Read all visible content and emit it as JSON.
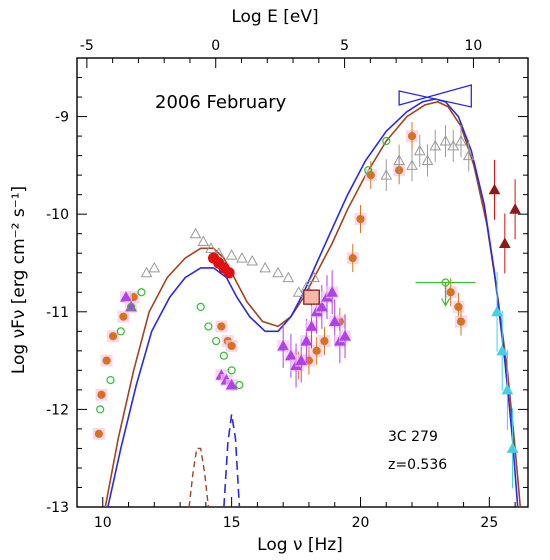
{
  "chart_data": {
    "type": "scatter",
    "period_label": "2006 February",
    "source_label": "3C 279",
    "redshift_label": "z=0.536",
    "xlabel": "Log ν [Hz]",
    "x2label": "Log E [eV]",
    "ylabel": "Log νFν [erg cm⁻² s⁻¹]",
    "xlim": [
      9,
      26.5
    ],
    "ylim": [
      -13,
      -8.4
    ],
    "x_ticks": [
      "10",
      "15",
      "20",
      "25"
    ],
    "x_tick_values": [
      10,
      15,
      20,
      25
    ],
    "y_ticks": [
      "-9",
      "-10",
      "-11",
      "-12",
      "-13"
    ],
    "y_tick_values": [
      -9,
      -10,
      -11,
      -12,
      -13
    ],
    "top_ticks": [
      "-5",
      "0",
      "5",
      "10"
    ],
    "top_tick_values": [
      -5,
      0,
      5,
      10
    ],
    "colors": {
      "brown_model": "#a0451f",
      "blue_model": "#2a2ae0",
      "orange": "#d9731a",
      "purple": "#b040e8",
      "green": "#30c030",
      "grey": "#9a9a9a",
      "red": "#e01010",
      "cyan": "#40d0e8",
      "darkred": "#8b1a1a",
      "pink_halo": "#f4c8f0"
    },
    "series": [
      {
        "name": "",
        "kind": "model-brown",
        "x": [
          10.1,
          10.6,
          11.2,
          11.8,
          12.5,
          13.2,
          13.8,
          14.3,
          14.7,
          15.1,
          15.6,
          16.2,
          16.8,
          17.3,
          17.8,
          18.3,
          18.9,
          19.5,
          20.2,
          21.0,
          21.8,
          22.5,
          23.0,
          23.4,
          23.9,
          24.4,
          24.9,
          25.3,
          25.7,
          26.0,
          26.2
        ],
        "y": [
          -13.0,
          -12.3,
          -11.6,
          -11.0,
          -10.65,
          -10.45,
          -10.35,
          -10.35,
          -10.45,
          -10.65,
          -10.9,
          -11.1,
          -11.15,
          -11.05,
          -10.85,
          -10.6,
          -10.3,
          -9.95,
          -9.6,
          -9.25,
          -9.0,
          -8.88,
          -8.85,
          -8.9,
          -9.1,
          -9.5,
          -10.1,
          -10.8,
          -11.6,
          -12.4,
          -13.0
        ]
      },
      {
        "name": "",
        "kind": "model-blue",
        "x": [
          10.2,
          10.7,
          11.3,
          11.9,
          12.6,
          13.2,
          13.8,
          14.3,
          14.8,
          15.2,
          15.7,
          16.3,
          16.8,
          17.3,
          17.8,
          18.3,
          18.9,
          19.5,
          20.2,
          21.0,
          21.8,
          22.4,
          22.9,
          23.3,
          23.8,
          24.3,
          24.8,
          25.2,
          25.6,
          25.9,
          26.1
        ],
        "y": [
          -13.0,
          -12.4,
          -11.75,
          -11.2,
          -10.85,
          -10.65,
          -10.55,
          -10.55,
          -10.65,
          -10.85,
          -11.05,
          -11.2,
          -11.2,
          -11.05,
          -10.8,
          -10.5,
          -10.15,
          -9.8,
          -9.45,
          -9.15,
          -8.95,
          -8.85,
          -8.82,
          -8.85,
          -9.0,
          -9.35,
          -9.9,
          -10.6,
          -11.5,
          -12.3,
          -13.0
        ]
      },
      {
        "name": "",
        "kind": "dashed-brown",
        "x": [
          13.35,
          13.5,
          13.65,
          13.8,
          13.95,
          14.1
        ],
        "y": [
          -13.0,
          -12.65,
          -12.4,
          -12.4,
          -12.65,
          -13.0
        ]
      },
      {
        "name": "",
        "kind": "dashed-blue",
        "x": [
          14.7,
          14.85,
          15.0,
          15.15,
          15.3
        ],
        "y": [
          -13.0,
          -12.35,
          -12.05,
          -12.3,
          -13.0
        ]
      },
      {
        "name": "",
        "kind": "orange-circles",
        "x": [
          9.85,
          9.95,
          10.15,
          10.4,
          10.8,
          11.2,
          14.6,
          14.85,
          15.0,
          17.6,
          18.0,
          18.3,
          18.6,
          19.2,
          19.7,
          20.0,
          20.4,
          21.5,
          22.0,
          23.5,
          23.8,
          23.9
        ],
        "y": [
          -12.25,
          -11.85,
          -11.5,
          -11.25,
          -11.05,
          -10.85,
          -11.15,
          -11.3,
          -11.35,
          -11.55,
          -11.5,
          -11.4,
          -11.3,
          -11.1,
          -10.45,
          -10.05,
          -9.6,
          -9.55,
          -9.2,
          -10.8,
          -10.95,
          -11.1
        ]
      },
      {
        "name": "",
        "kind": "purple-triangles",
        "x": [
          10.9,
          11.1,
          14.6,
          14.8,
          15.0,
          17.0,
          17.3,
          17.5,
          17.7,
          17.9,
          18.1,
          18.3,
          18.5,
          18.7,
          18.9,
          19.0,
          19.2,
          19.4
        ],
        "y": [
          -10.85,
          -10.95,
          -11.65,
          -11.7,
          -11.75,
          -11.35,
          -11.45,
          -11.55,
          -11.5,
          -11.3,
          -11.15,
          -11.0,
          -10.95,
          -10.85,
          -10.8,
          -11.1,
          -11.3,
          -11.25
        ]
      },
      {
        "name": "",
        "kind": "green-circles",
        "x": [
          9.9,
          10.3,
          10.7,
          11.1,
          11.5,
          13.8,
          14.1,
          14.4,
          14.7,
          15.0,
          15.3,
          20.3,
          21.0
        ],
        "y": [
          -12.0,
          -11.7,
          -11.2,
          -10.95,
          -10.8,
          -10.95,
          -11.15,
          -11.3,
          -11.45,
          -11.6,
          -11.75,
          -9.55,
          -9.25
        ]
      },
      {
        "name": "",
        "kind": "grey-triangles",
        "x": [
          11.7,
          12.0,
          13.6,
          13.9,
          14.2,
          14.5,
          15.0,
          15.4,
          15.8,
          16.3,
          16.8,
          17.2,
          17.6,
          17.9,
          18.2,
          21.0,
          21.5,
          22.0,
          22.3,
          22.6,
          22.9,
          23.3,
          23.6,
          23.9,
          24.2
        ],
        "y": [
          -10.6,
          -10.55,
          -10.2,
          -10.28,
          -10.35,
          -10.4,
          -10.42,
          -10.45,
          -10.48,
          -10.55,
          -10.6,
          -10.65,
          -10.8,
          -10.75,
          -10.65,
          -9.6,
          -9.45,
          -9.5,
          -9.35,
          -9.45,
          -9.3,
          -9.25,
          -9.3,
          -9.25,
          -9.4
        ]
      },
      {
        "name": "",
        "kind": "red-circles",
        "x": [
          14.3,
          14.5,
          14.7,
          14.9
        ],
        "y": [
          -10.45,
          -10.5,
          -10.55,
          -10.6
        ]
      },
      {
        "name": "",
        "kind": "cyan-triangles",
        "x": [
          25.3,
          25.5,
          25.7,
          25.9
        ],
        "y": [
          -11.0,
          -11.4,
          -11.8,
          -12.4
        ]
      },
      {
        "name": "",
        "kind": "darkred-triangles",
        "x": [
          25.2,
          25.6,
          26.0
        ],
        "y": [
          -9.75,
          -10.3,
          -9.95
        ]
      },
      {
        "name": "",
        "kind": "green-upper-limit",
        "x": [
          23.3
        ],
        "y": [
          -10.7
        ]
      }
    ],
    "bowtie_gamma": {
      "x": [
        21.5,
        24.3
      ],
      "y": [
        -8.92,
        -8.72
      ]
    },
    "bowtie_xray": {
      "x": [
        17.8,
        18.4
      ],
      "y": [
        -10.85,
        -10.85
      ]
    }
  }
}
